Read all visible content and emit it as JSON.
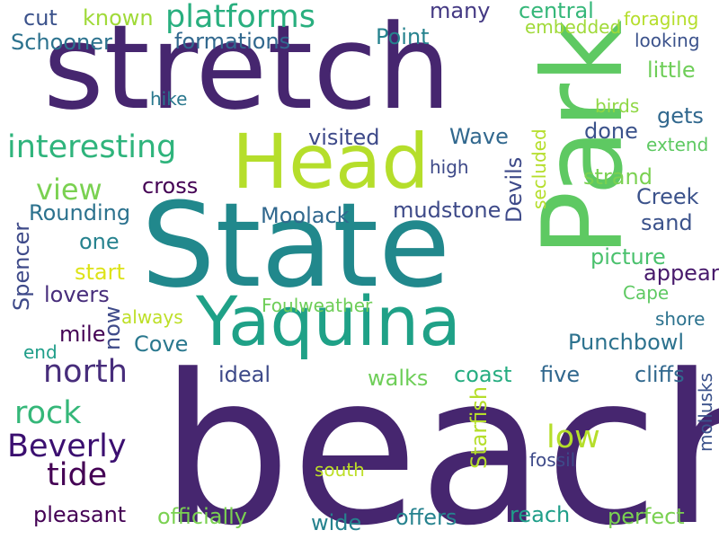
{
  "words": [
    {
      "text": "beach",
      "color": "#46266f"
    },
    {
      "text": "stretch",
      "color": "#46266f"
    },
    {
      "text": "State",
      "color": "#21888c"
    },
    {
      "text": "Park",
      "color": "#5ec962"
    },
    {
      "text": "Head",
      "color": "#b5de2b"
    },
    {
      "text": "Yaquina",
      "color": "#1fa187"
    },
    {
      "text": "platforms",
      "color": "#29af7f"
    },
    {
      "text": "interesting",
      "color": "#2fb47c"
    },
    {
      "text": "north",
      "color": "#472d7b"
    },
    {
      "text": "Beverly",
      "color": "#3b0f70"
    },
    {
      "text": "tide",
      "color": "#440154"
    },
    {
      "text": "rock",
      "color": "#35b779"
    },
    {
      "text": "view",
      "color": "#7ad151"
    },
    {
      "text": "low",
      "color": "#b5de2b"
    },
    {
      "text": "Schooner",
      "color": "#2c728e"
    },
    {
      "text": "cut",
      "color": "#3b528b"
    },
    {
      "text": "known",
      "color": "#a0da39"
    },
    {
      "text": "formations",
      "color": "#31688e"
    },
    {
      "text": "many",
      "color": "#443983"
    },
    {
      "text": "central",
      "color": "#35b779"
    },
    {
      "text": "foraging",
      "color": "#b5de2b"
    },
    {
      "text": "embedded",
      "color": "#a0da39"
    },
    {
      "text": "looking",
      "color": "#3b528b"
    },
    {
      "text": "little",
      "color": "#6ece58"
    },
    {
      "text": "Point",
      "color": "#26828e"
    },
    {
      "text": "hike",
      "color": "#2a788e"
    },
    {
      "text": "birds",
      "color": "#8fd744"
    },
    {
      "text": "gets",
      "color": "#31688e"
    },
    {
      "text": "visited",
      "color": "#3e4a89"
    },
    {
      "text": "Wave",
      "color": "#31688e"
    },
    {
      "text": "done",
      "color": "#3b528b"
    },
    {
      "text": "extend",
      "color": "#5ec962"
    },
    {
      "text": "high",
      "color": "#3e4a89"
    },
    {
      "text": "cross",
      "color": "#440154"
    },
    {
      "text": "strand",
      "color": "#7ad151"
    },
    {
      "text": "Creek",
      "color": "#3b528b"
    },
    {
      "text": "Rounding",
      "color": "#2c728e"
    },
    {
      "text": "Moolack",
      "color": "#31688e"
    },
    {
      "text": "mudstone",
      "color": "#3e4a89"
    },
    {
      "text": "Devils",
      "color": "#3e4a89"
    },
    {
      "text": "secluded",
      "color": "#b5de2b"
    },
    {
      "text": "sand",
      "color": "#3b528b"
    },
    {
      "text": "one",
      "color": "#26828e"
    },
    {
      "text": "picture",
      "color": "#4ac16d"
    },
    {
      "text": "start",
      "color": "#dde318"
    },
    {
      "text": "appear",
      "color": "#481a6c"
    },
    {
      "text": "Spencer",
      "color": "#3e4a89"
    },
    {
      "text": "lovers",
      "color": "#472d7b"
    },
    {
      "text": "Foulweather",
      "color": "#6ece58"
    },
    {
      "text": "Cape",
      "color": "#5ec962"
    },
    {
      "text": "always",
      "color": "#bddf26"
    },
    {
      "text": "now",
      "color": "#3e4a89"
    },
    {
      "text": "mile",
      "color": "#440154"
    },
    {
      "text": "shore",
      "color": "#2c728e"
    },
    {
      "text": "Cove",
      "color": "#2a788e"
    },
    {
      "text": "Punchbowl",
      "color": "#2c728e"
    },
    {
      "text": "end",
      "color": "#1f9e89"
    },
    {
      "text": "ideal",
      "color": "#3e4a89"
    },
    {
      "text": "walks",
      "color": "#6ece58"
    },
    {
      "text": "coast",
      "color": "#26ad81"
    },
    {
      "text": "five",
      "color": "#31688e"
    },
    {
      "text": "cliffs",
      "color": "#31688e"
    },
    {
      "text": "Starfish",
      "color": "#b5de2b"
    },
    {
      "text": "mollusks",
      "color": "#3b528b"
    },
    {
      "text": "fossil",
      "color": "#3e4a89"
    },
    {
      "text": "south",
      "color": "#bddf26"
    },
    {
      "text": "pleasant",
      "color": "#440154"
    },
    {
      "text": "officially",
      "color": "#7ad151"
    },
    {
      "text": "wide",
      "color": "#26828e"
    },
    {
      "text": "offers",
      "color": "#26828e"
    },
    {
      "text": "reach",
      "color": "#1f9e89"
    },
    {
      "text": "perfect",
      "color": "#7ad151"
    }
  ]
}
